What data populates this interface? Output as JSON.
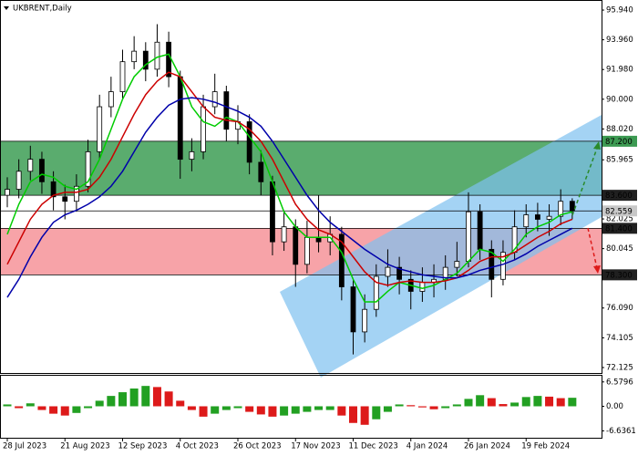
{
  "chart_data": [
    {
      "type": "candlestick",
      "title": "UKBRENT,Daily",
      "categories": [
        "28 Jul 2023",
        null,
        null,
        null,
        null,
        "21 Aug 2023",
        null,
        null,
        null,
        null,
        "12 Sep 2023",
        null,
        null,
        null,
        null,
        "4 Oct 2023",
        null,
        null,
        null,
        null,
        "26 Oct 2023",
        null,
        null,
        null,
        null,
        "17 Nov 2023",
        null,
        null,
        null,
        null,
        "11 Dec 2023",
        null,
        null,
        null,
        null,
        "4 Jan 2024",
        null,
        null,
        null,
        null,
        "26 Jan 2024",
        null,
        null,
        null,
        null,
        "19 Feb 2024",
        null,
        null,
        null,
        null
      ],
      "open": [
        83.6,
        84.0,
        85.2,
        86.0,
        84.5,
        83.5,
        83.2,
        84.2,
        86.5,
        89.5,
        90.5,
        92.5,
        93.2,
        92.0,
        93.8,
        91.5,
        86.0,
        86.5,
        89.5,
        90.5,
        88.0,
        88.5,
        85.8,
        84.5,
        80.5,
        81.5,
        79.0,
        80.8,
        80.5,
        81.0,
        77.5,
        74.5,
        76.0,
        78.2,
        78.8,
        78.0,
        77.2,
        77.8,
        78.0,
        78.8,
        79.2,
        82.5,
        80.0,
        78.0,
        79.8,
        81.5,
        82.3,
        82.0,
        82.2,
        83.2
      ],
      "high": [
        84.8,
        86.0,
        86.9,
        86.5,
        85.2,
        84.3,
        85.0,
        87.3,
        90.3,
        91.5,
        93.3,
        94.2,
        93.8,
        95.0,
        94.5,
        91.9,
        87.4,
        90.3,
        91.7,
        90.9,
        89.6,
        89.0,
        86.6,
        84.9,
        82.5,
        82.0,
        81.9,
        83.6,
        82.2,
        81.5,
        78.0,
        77.0,
        79.0,
        80.0,
        79.5,
        78.6,
        78.8,
        79.0,
        79.6,
        80.5,
        83.8,
        83.0,
        80.6,
        80.6,
        82.6,
        83.0,
        83.1,
        83.0,
        84.0,
        83.4
      ],
      "low": [
        82.8,
        83.4,
        84.6,
        83.7,
        82.6,
        82.0,
        82.5,
        83.8,
        86.0,
        88.8,
        90.0,
        92.0,
        91.2,
        91.5,
        90.8,
        84.7,
        85.2,
        86.0,
        89.0,
        87.2,
        87.0,
        85.0,
        83.6,
        79.6,
        79.9,
        77.5,
        78.4,
        79.8,
        79.6,
        76.6,
        73.0,
        73.8,
        75.5,
        77.5,
        77.0,
        76.0,
        76.5,
        76.8,
        77.3,
        78.2,
        78.8,
        79.3,
        76.8,
        77.6,
        79.3,
        80.8,
        81.2,
        80.9,
        81.6,
        82.0
      ],
      "close": [
        84.0,
        85.2,
        86.0,
        84.5,
        83.5,
        83.2,
        84.2,
        86.5,
        89.5,
        90.5,
        92.5,
        93.2,
        92.0,
        93.8,
        91.5,
        86.0,
        86.5,
        89.5,
        90.5,
        88.0,
        88.5,
        85.8,
        84.5,
        80.5,
        81.5,
        79.0,
        80.8,
        80.5,
        81.0,
        77.5,
        74.5,
        76.0,
        78.2,
        78.8,
        78.0,
        77.2,
        77.8,
        78.0,
        78.8,
        79.2,
        82.5,
        80.0,
        78.0,
        79.8,
        81.5,
        82.3,
        82.0,
        82.2,
        83.2,
        82.56
      ],
      "candle_color": "#000000",
      "lines": [
        {
          "color": "#00cc00",
          "values": [
            81.0,
            83.0,
            84.5,
            85.0,
            84.8,
            84.2,
            84.0,
            84.5,
            86.0,
            88.0,
            90.0,
            91.5,
            92.3,
            92.8,
            93.0,
            91.5,
            89.5,
            88.5,
            88.2,
            88.8,
            88.5,
            87.5,
            86.5,
            84.5,
            82.5,
            81.5,
            80.8,
            80.8,
            80.8,
            79.8,
            78.0,
            76.5,
            76.5,
            77.2,
            77.8,
            77.6,
            77.4,
            77.6,
            78.0,
            78.4,
            79.2,
            80.0,
            79.8,
            79.2,
            80.0,
            81.0,
            81.5,
            81.8,
            82.3,
            82.5
          ]
        },
        {
          "color": "#cc0000",
          "values": [
            79.0,
            80.5,
            82.0,
            83.0,
            83.6,
            83.8,
            83.8,
            84.0,
            84.8,
            86.0,
            87.5,
            89.0,
            90.3,
            91.2,
            91.8,
            91.5,
            90.5,
            89.5,
            88.8,
            88.6,
            88.5,
            88.0,
            87.2,
            86.0,
            84.5,
            83.0,
            82.0,
            81.3,
            81.0,
            80.5,
            79.5,
            78.5,
            77.8,
            77.6,
            77.8,
            77.9,
            77.8,
            77.8,
            77.9,
            78.1,
            78.6,
            79.2,
            79.5,
            79.5,
            79.8,
            80.3,
            80.8,
            81.2,
            81.7,
            82.0
          ]
        },
        {
          "color": "#0000aa",
          "values": [
            76.8,
            78.0,
            79.5,
            80.8,
            81.8,
            82.3,
            82.6,
            83.0,
            83.5,
            84.2,
            85.2,
            86.5,
            87.8,
            88.8,
            89.6,
            90.0,
            90.1,
            90.0,
            89.8,
            89.5,
            89.2,
            88.8,
            88.2,
            87.2,
            86.0,
            84.8,
            83.6,
            82.6,
            81.8,
            81.2,
            80.6,
            80.0,
            79.5,
            79.0,
            78.7,
            78.5,
            78.3,
            78.2,
            78.1,
            78.1,
            78.3,
            78.6,
            78.8,
            79.0,
            79.3,
            79.7,
            80.2,
            80.6,
            81.0,
            81.4
          ]
        }
      ],
      "ylim": [
        71.76,
        96.55
      ],
      "yticks": [
        {
          "value": 95.94,
          "label": "95.940"
        },
        {
          "value": 93.96,
          "label": "93.960"
        },
        {
          "value": 91.98,
          "label": "91.980"
        },
        {
          "value": 90.0,
          "label": "90.000"
        },
        {
          "value": 88.02,
          "label": "88.020"
        },
        85.965,
        82.025,
        80.045,
        {
          "value": 76.09,
          "label": "76.090"
        },
        74.105,
        72.125
      ],
      "zones": [
        {
          "from": 83.6,
          "to": 87.2,
          "color": "#5aac6e"
        },
        {
          "from": 78.3,
          "to": 81.4,
          "color": "#f7a3a8"
        }
      ],
      "levels": [
        {
          "value": 87.2,
          "label": "87.200",
          "color": "#3c9a52",
          "text_color": "#ffffff"
        },
        {
          "value": 83.6,
          "label": "83.600",
          "color": "#202020",
          "text_color": "#ffffff"
        },
        {
          "value": 82.559,
          "label": "82.559",
          "color": "#c8c8c8",
          "text_color": "#000000"
        },
        {
          "value": 81.4,
          "label": "81.400",
          "color": "#202020",
          "text_color": "#ffffff"
        },
        {
          "value": 78.3,
          "label": "78.300",
          "color": "#202020",
          "text_color": "#ffffff"
        }
      ]
    },
    {
      "type": "bar",
      "values": [
        0.5,
        -0.5,
        0.8,
        -1.0,
        -2.0,
        -2.5,
        -1.8,
        -0.5,
        1.5,
        2.8,
        3.8,
        4.8,
        5.5,
        5.2,
        4.0,
        1.5,
        -1.0,
        -2.8,
        -2.0,
        -1.0,
        -0.5,
        -1.5,
        -2.2,
        -2.8,
        -2.5,
        -2.0,
        -1.5,
        -1.0,
        -1.0,
        -2.5,
        -4.5,
        -5.0,
        -3.5,
        -1.5,
        0.5,
        0.3,
        -0.3,
        -0.8,
        -0.5,
        0.5,
        2.0,
        3.0,
        2.2,
        0.6,
        1.0,
        2.5,
        2.8,
        2.6,
        2.2,
        2.3
      ],
      "up_color": "#22a022",
      "down_color": "#dd1a1a",
      "ylim": [
        -8.5,
        8.25
      ],
      "yticks": [
        6.5796,
        {
          "value": 0,
          "label": "0.00"
        },
        -6.6361
      ]
    }
  ]
}
